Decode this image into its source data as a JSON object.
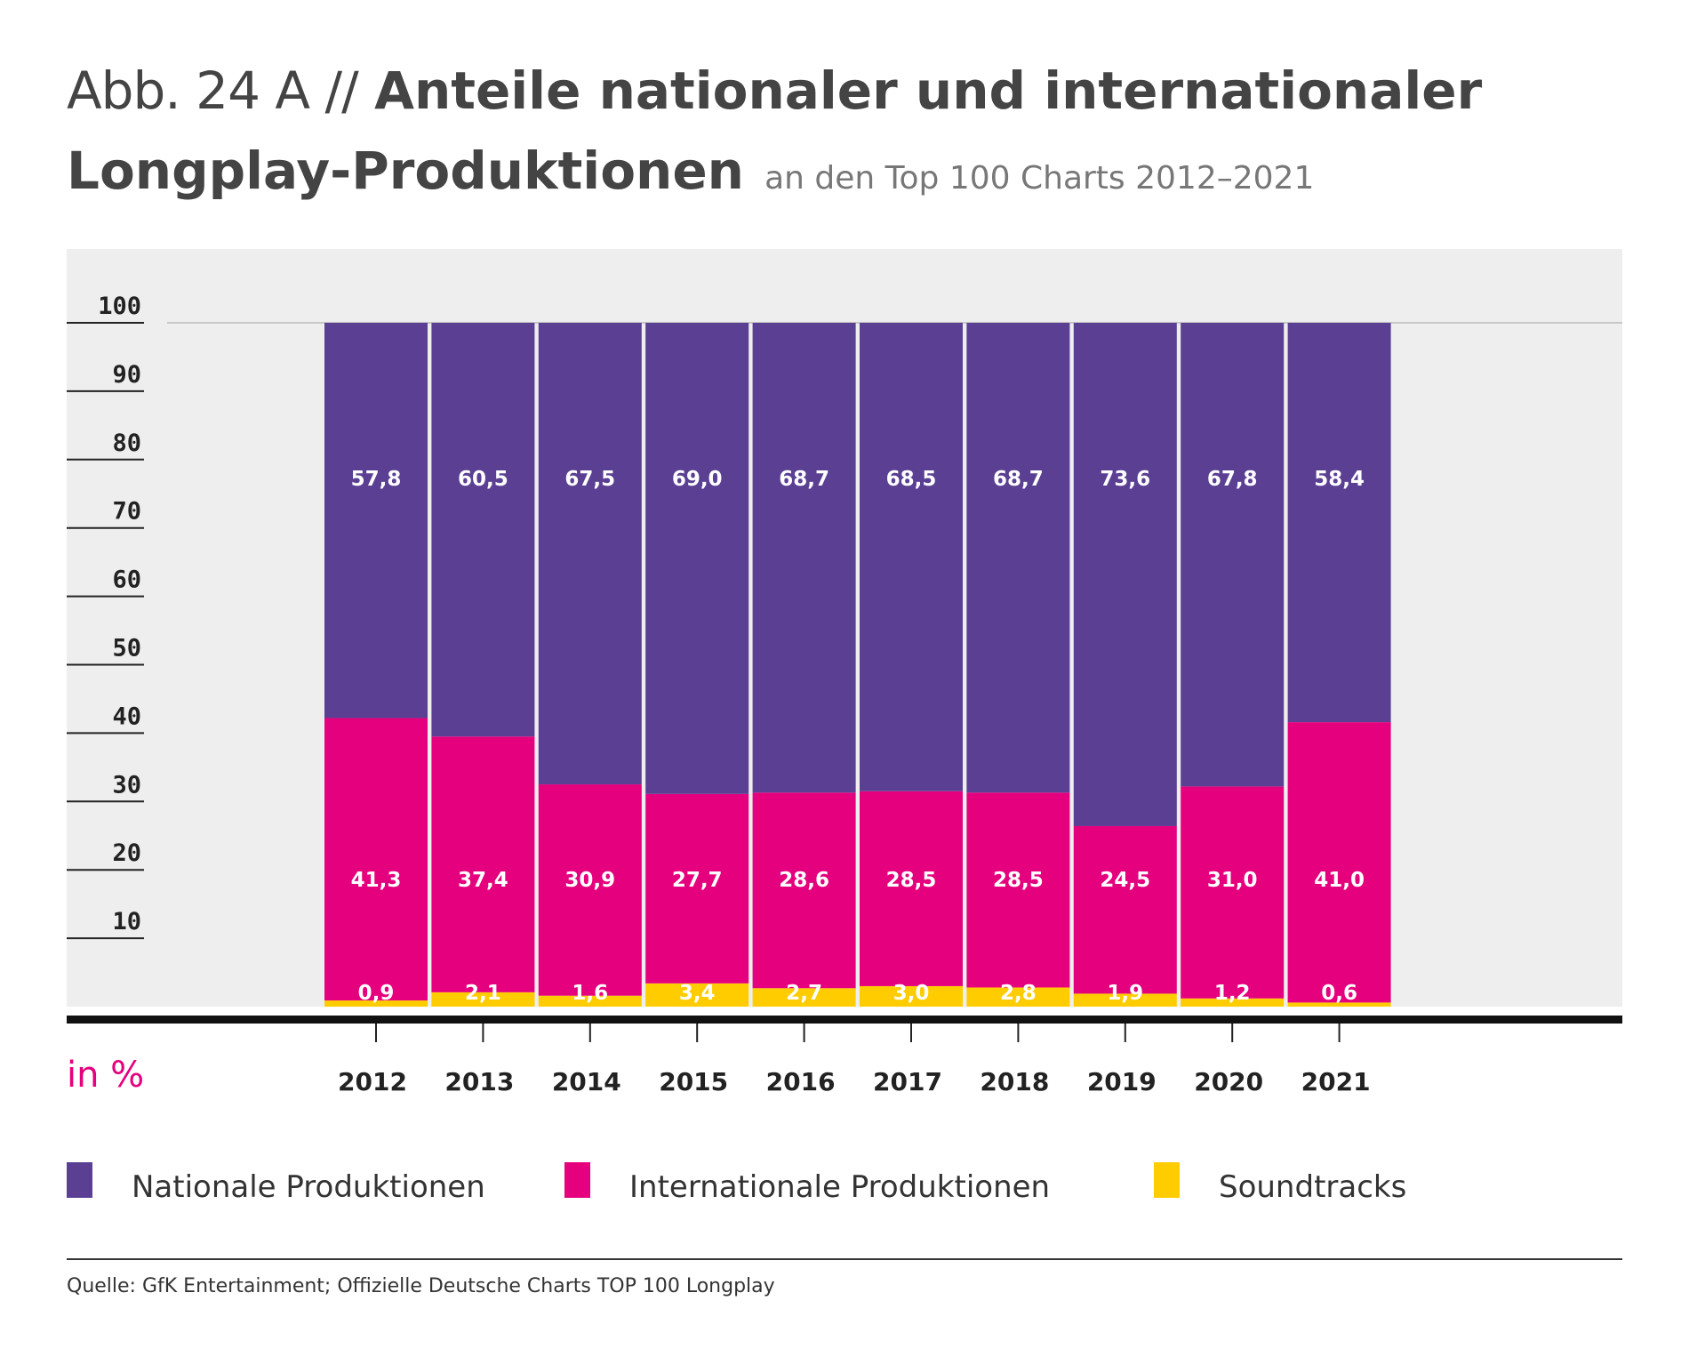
{
  "title": {
    "prefix": "Abb. 24 A //",
    "main_line1": "Anteile nationaler und internationaler",
    "main_line2": "Longplay-Produktionen",
    "subtitle": "an den Top 100 Charts 2012–2021"
  },
  "unit_label": "in %",
  "source": "Quelle: GfK Entertainment; Offizielle Deutsche Charts TOP 100 Longplay",
  "colors": {
    "national": "#5a3f93",
    "international": "#e5007e",
    "soundtracks": "#ffcc00",
    "plot_background": "#eeeeee",
    "text": "#444444"
  },
  "chart_data": {
    "type": "bar",
    "stacked": true,
    "categories": [
      "2012",
      "2013",
      "2014",
      "2015",
      "2016",
      "2017",
      "2018",
      "2019",
      "2020",
      "2021"
    ],
    "series": [
      {
        "name": "Soundtracks",
        "values": [
          0.9,
          2.1,
          1.6,
          3.4,
          2.7,
          3.0,
          2.8,
          1.9,
          1.2,
          0.6
        ],
        "labels": [
          "0,9",
          "2,1",
          "1,6",
          "3,4",
          "2,7",
          "3,0",
          "2,8",
          "1,9",
          "1,2",
          "0,6"
        ]
      },
      {
        "name": "Internationale Produktionen",
        "values": [
          41.3,
          37.4,
          30.9,
          27.7,
          28.6,
          28.5,
          28.5,
          24.5,
          31.0,
          41.0
        ],
        "labels": [
          "41,3",
          "37,4",
          "30,9",
          "27,7",
          "28,6",
          "28,5",
          "28,5",
          "24,5",
          "31,0",
          "41,0"
        ]
      },
      {
        "name": "Nationale Produktionen",
        "values": [
          57.8,
          60.5,
          67.5,
          69.0,
          68.7,
          68.5,
          68.7,
          73.6,
          67.8,
          58.4
        ],
        "labels": [
          "57,8",
          "60,5",
          "67,5",
          "69,0",
          "68,7",
          "68,5",
          "68,7",
          "73,6",
          "67,8",
          "58,4"
        ]
      }
    ],
    "yticks": [
      "10",
      "20",
      "30",
      "40",
      "50",
      "60",
      "70",
      "80",
      "90",
      "100"
    ],
    "ylim": [
      0,
      100
    ],
    "legend_position": "bottom"
  },
  "legend": [
    {
      "label": "Nationale Produktionen",
      "color": "#5a3f93",
      "icon": "square-swatch"
    },
    {
      "label": "Internationale Produktionen",
      "color": "#e5007e",
      "icon": "square-swatch"
    },
    {
      "label": "Soundtracks",
      "color": "#ffcc00",
      "icon": "square-swatch"
    }
  ]
}
